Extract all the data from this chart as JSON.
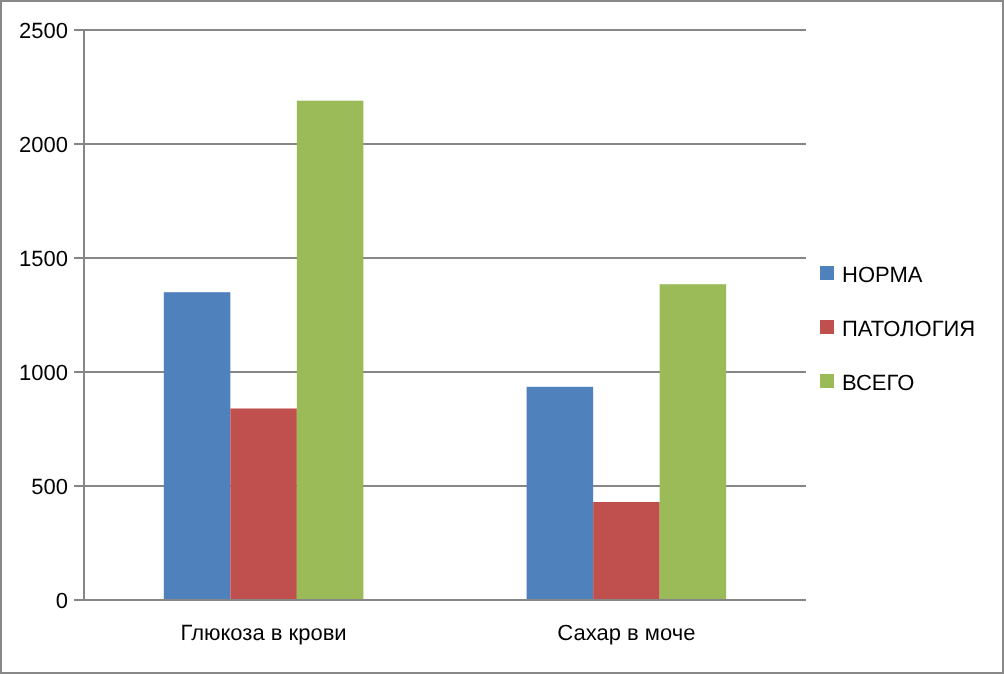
{
  "chart_data": {
    "type": "bar",
    "categories": [
      "Глюкоза в крови",
      "Сахар в моче"
    ],
    "series": [
      {
        "name": "НОРМА",
        "color": "#4f81bd",
        "values": [
          1350,
          935
        ]
      },
      {
        "name": "ПАТОЛОГИЯ",
        "color": "#c0504d",
        "values": [
          840,
          430
        ]
      },
      {
        "name": "ВСЕГО",
        "color": "#9bbb59",
        "values": [
          2190,
          1385
        ]
      }
    ],
    "ylim": [
      0,
      2500
    ],
    "yticks": [
      0,
      500,
      1000,
      1500,
      2000,
      2500
    ],
    "grid": "y",
    "legend": "right"
  }
}
